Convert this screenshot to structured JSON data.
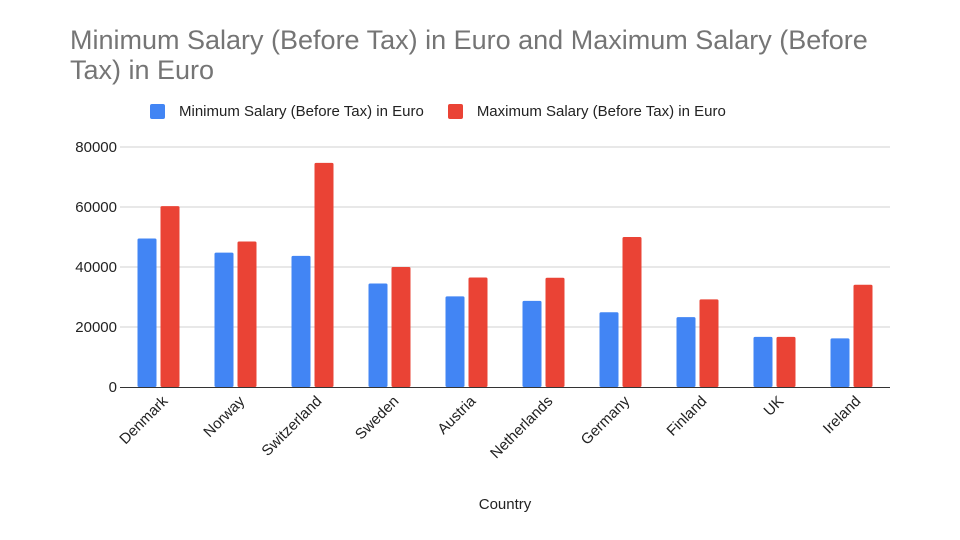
{
  "chart_data": {
    "type": "bar",
    "title": "Minimum Salary (Before Tax) in Euro and Maximum Salary (Before Tax) in Euro",
    "xlabel": "Country",
    "ylabel": "",
    "categories": [
      "Denmark",
      "Norway",
      "Switzerland",
      "Sweden",
      "Austria",
      "Netherlands",
      "Germany",
      "Finland",
      "UK",
      "Ireland"
    ],
    "series": [
      {
        "name": "Minimum Salary (Before Tax) in Euro",
        "color": "#4285f4",
        "values": [
          49500,
          44800,
          43700,
          34500,
          30200,
          28700,
          24900,
          23300,
          16700,
          16200
        ]
      },
      {
        "name": "Maximum Salary (Before Tax) in Euro",
        "color": "#ea4335",
        "values": [
          60300,
          48500,
          74700,
          40000,
          36500,
          36400,
          50000,
          29200,
          16700,
          34100
        ]
      }
    ],
    "ylim": [
      0,
      80000
    ],
    "yticks": [
      "0",
      "20000",
      "40000",
      "60000",
      "80000"
    ],
    "grid": true,
    "legend_position": "top"
  }
}
